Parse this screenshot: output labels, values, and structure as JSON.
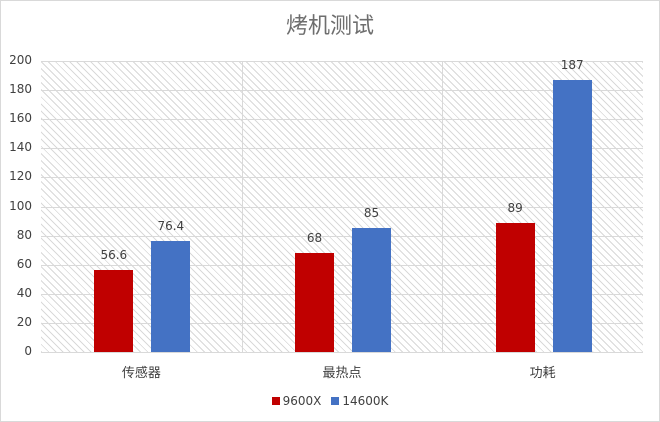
{
  "chart_data": {
    "type": "bar",
    "title": "烤机测试",
    "categories": [
      "传感器",
      "最热点",
      "功耗"
    ],
    "series": [
      {
        "name": "9600X",
        "color": "#c00000",
        "values": [
          56.6,
          68,
          89
        ]
      },
      {
        "name": "14600K",
        "color": "#4472c4",
        "values": [
          76.4,
          85,
          187
        ]
      }
    ],
    "data_labels": [
      [
        "56.6",
        "68",
        "89"
      ],
      [
        "76.4",
        "85",
        "187"
      ]
    ],
    "xlabel": "",
    "ylabel": "",
    "ylim": [
      0,
      200
    ],
    "yticks": [
      "0",
      "20",
      "40",
      "60",
      "80",
      "100",
      "120",
      "140",
      "160",
      "180",
      "200"
    ],
    "grid": true,
    "legend_position": "bottom"
  }
}
